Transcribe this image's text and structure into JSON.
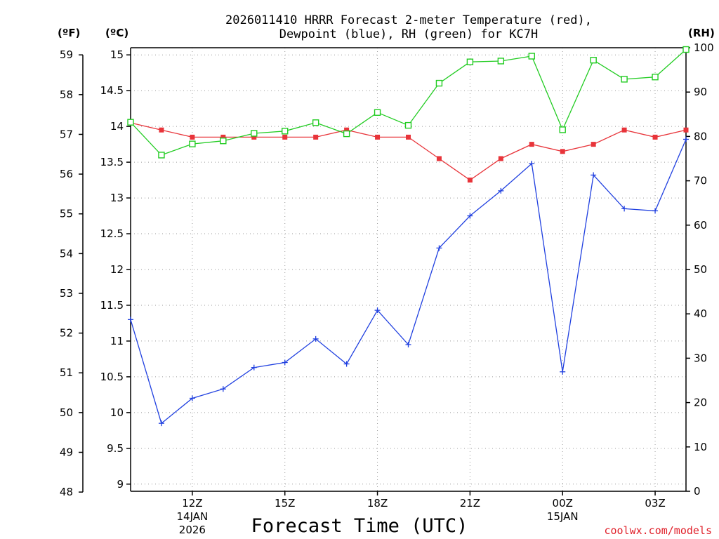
{
  "title_line1": "2026011410 HRRR Forecast 2-meter Temperature (red),",
  "title_line2": "Dewpoint (blue), RH (green) for KC7H",
  "unit_f": "(ºF)",
  "unit_c": "(ºC)",
  "unit_rh": "(RH)",
  "credit": "coolwx.com/models",
  "colors": {
    "temp": "#e8343a",
    "dew": "#2040e0",
    "rh": "#22cc22"
  },
  "chart_data": {
    "type": "line",
    "title": "2026011410 HRRR Forecast 2-meter Temperature (red), Dewpoint (blue), RH (green) for KC7H",
    "xlabel": "Forecast Time (UTC)",
    "x_hours_since_10Z": [
      0,
      1,
      2,
      3,
      4,
      5,
      6,
      7,
      8,
      9,
      10,
      11,
      12,
      13,
      14,
      15,
      16,
      17,
      18
    ],
    "x_range_hours": [
      0,
      18
    ],
    "x_ticks": [
      {
        "hour": 2,
        "label": "12Z",
        "sub1": "14JAN",
        "sub2": "2026"
      },
      {
        "hour": 5,
        "label": "15Z",
        "sub1": "",
        "sub2": ""
      },
      {
        "hour": 8,
        "label": "18Z",
        "sub1": "",
        "sub2": ""
      },
      {
        "hour": 11,
        "label": "21Z",
        "sub1": "",
        "sub2": ""
      },
      {
        "hour": 14,
        "label": "00Z",
        "sub1": "15JAN",
        "sub2": ""
      },
      {
        "hour": 17,
        "label": "03Z",
        "sub1": "",
        "sub2": ""
      }
    ],
    "y_left_celsius": {
      "label": "(ºC)",
      "range": [
        8.9,
        15.1
      ],
      "ticks": [
        9,
        9.5,
        10,
        10.5,
        11,
        11.5,
        12,
        12.5,
        13,
        13.5,
        14,
        14.5,
        15
      ]
    },
    "y_left_fahrenheit": {
      "label": "(ºF)",
      "ticks": [
        48,
        49,
        50,
        51,
        52,
        53,
        54,
        55,
        56,
        57,
        58,
        59
      ]
    },
    "y_right_rh": {
      "label": "(RH)",
      "range": [
        0,
        100
      ],
      "ticks": [
        0,
        10,
        20,
        30,
        40,
        50,
        60,
        70,
        80,
        90,
        100
      ]
    },
    "series": [
      {
        "name": "Temperature",
        "axis": "celsius",
        "color": "red",
        "marker": "filled-square",
        "values": [
          14.05,
          13.95,
          13.85,
          13.85,
          13.85,
          13.85,
          13.85,
          13.95,
          13.85,
          13.85,
          13.55,
          13.25,
          13.55,
          13.75,
          13.65,
          13.75,
          13.95,
          13.85,
          13.95
        ]
      },
      {
        "name": "Dewpoint",
        "axis": "celsius",
        "color": "blue",
        "marker": "plus",
        "values": [
          11.3,
          9.85,
          10.2,
          10.33,
          10.63,
          10.7,
          11.03,
          10.68,
          11.43,
          10.95,
          12.3,
          12.75,
          13.1,
          13.48,
          10.57,
          13.32,
          12.85,
          12.82,
          13.82
        ]
      },
      {
        "name": "Relative Humidity",
        "axis": "rh",
        "color": "green",
        "marker": "open-square",
        "values": [
          83.2,
          75.8,
          78.3,
          79.0,
          80.7,
          81.2,
          83.1,
          80.6,
          85.4,
          82.5,
          92.0,
          96.8,
          97.0,
          98.1,
          81.5,
          97.2,
          92.9,
          93.4,
          99.6
        ]
      }
    ],
    "grid": true,
    "legend": "none (series colors described in title)"
  }
}
